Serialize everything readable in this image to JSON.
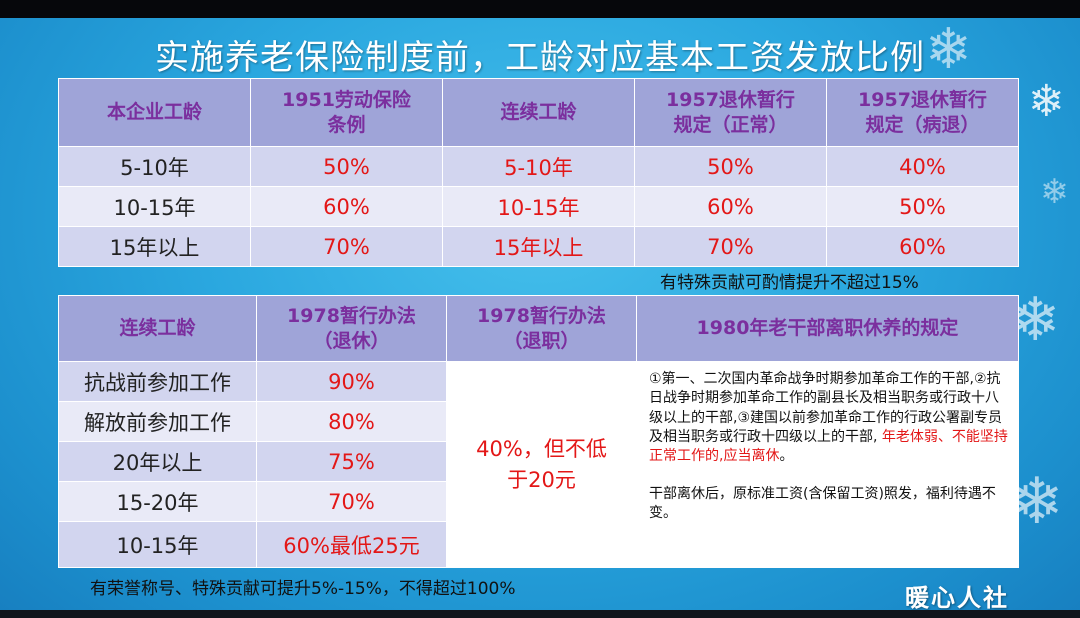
{
  "title": "实施养老保险制度前，工龄对应基本工资发放比例",
  "table1": {
    "headers": [
      "本企业工龄",
      "1951劳动保险\n条例",
      "连续工龄",
      "1957退休暂行\n规定（正常）",
      "1957退休暂行\n规定（病退）"
    ],
    "rows": [
      [
        "5-10年",
        "50%",
        "5-10年",
        "50%",
        "40%"
      ],
      [
        "10-15年",
        "60%",
        "10-15年",
        "60%",
        "50%"
      ],
      [
        "15年以上",
        "70%",
        "15年以上",
        "70%",
        "60%"
      ]
    ],
    "note": "有特殊贡献可酌情提升不超过15%"
  },
  "table2": {
    "headers": [
      "连续工龄",
      "1978暂行办法\n（退休）",
      "1978暂行办法\n（退职）",
      "1980年老干部离职休养的规定"
    ],
    "rows": [
      [
        "抗战前参加工作",
        "90%"
      ],
      [
        "解放前参加工作",
        "80%"
      ],
      [
        "20年以上",
        "75%"
      ],
      [
        "15-20年",
        "70%"
      ],
      [
        "10-15年",
        "60%最低25元"
      ]
    ],
    "merged_value": "40%，但不低\n于20元",
    "rule_text_1": "①第一、二次国内革命战争时期参加革命工作的干部,②抗日战争时期参加革命工作的副县长及相当职务或行政十八级以上的干部,③建国以前参加革命工作的行政公署副专员及相当职务或行政十四级以上的干部, ",
    "rule_text_red": "年老体弱、不能坚持正常工作的,应当离休",
    "rule_text_end": "。",
    "rule_text_2": "干部离休后，原标准工资(含保留工资)照发，福利待遇不变。",
    "note": "有荣誉称号、特殊贡献可提升5%-15%，不得超过100%"
  },
  "watermark": "暖心人社",
  "colors": {
    "background": "#2aa7df",
    "header_fill": "#9fa4d8",
    "header_text": "#7b2f9e",
    "row_dark": "#d2d5ef",
    "row_light": "#e9eaf7",
    "highlight_red": "#e31717"
  },
  "icons": [
    "snowflake-icon"
  ]
}
